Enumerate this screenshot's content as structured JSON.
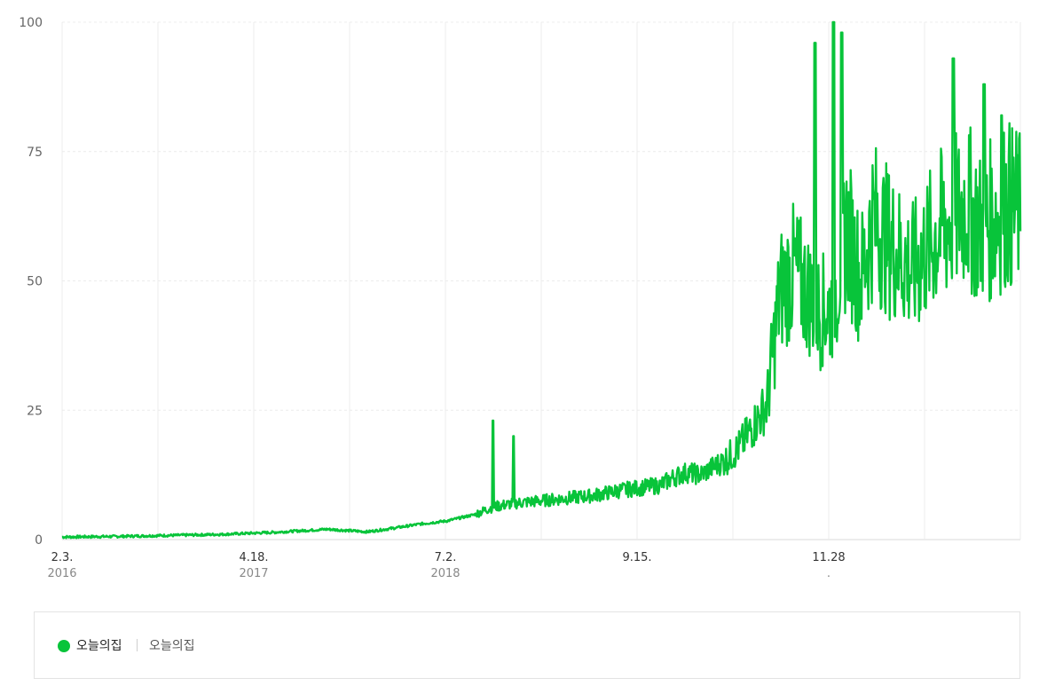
{
  "chart_data": {
    "type": "line",
    "title": "",
    "xlabel": "",
    "ylabel": "",
    "ylim": [
      0,
      100
    ],
    "yticks": [
      "0",
      "25",
      "50",
      "75",
      "100"
    ],
    "xtick_labels": [
      {
        "label": "2.3.",
        "sub": "2016"
      },
      {
        "label": "4.18.",
        "sub": "2017"
      },
      {
        "label": "7.2.",
        "sub": "2018"
      },
      {
        "label": "9.15.",
        "sub": ""
      },
      {
        "label": "11.28",
        "sub": "."
      }
    ],
    "color": "#08c43a",
    "grid": true,
    "series": [
      {
        "name": "오늘의집",
        "x": [
          "2016-02-03",
          "2016-06-01",
          "2016-10-01",
          "2017-02-01",
          "2017-06-01",
          "2017-10-01",
          "2018-01-01",
          "2018-03-01",
          "2018-05-01",
          "2018-07-01",
          "2018-09-01",
          "2018-10-15",
          "2018-12-01",
          "2019-02-01",
          "2019-04-01",
          "2019-06-01",
          "2019-08-01",
          "2019-09-15",
          "2019-11-01",
          "2019-12-01",
          "2020-01-01",
          "2020-02-01",
          "2020-03-01",
          "2020-04-01",
          "2020-05-01",
          "2020-06-01",
          "2020-07-01",
          "2020-08-01",
          "2020-09-01",
          "2020-10-01",
          "2020-11-01",
          "2020-11-28",
          "2021-01-01",
          "2021-02-01",
          "2021-03-01",
          "2021-04-01",
          "2021-05-01",
          "2021-06-01",
          "2021-07-01",
          "2021-08-01",
          "2021-09-01",
          "2021-10-01",
          "2021-11-01",
          "2021-12-01",
          "2022-01-01",
          "2022-02-01"
        ],
        "values": [
          0.5,
          0.6,
          0.8,
          1.0,
          1.4,
          2.0,
          1.5,
          2.2,
          3.0,
          3.6,
          4.8,
          6.3,
          7.0,
          7.5,
          8.0,
          8.5,
          9.5,
          10.0,
          10.5,
          12.0,
          13.0,
          12.5,
          14.0,
          15.5,
          18.0,
          22.0,
          26.0,
          48.0,
          52.0,
          48.0,
          44.0,
          45.0,
          60.0,
          50.0,
          62.0,
          58.0,
          55.0,
          52.0,
          56.0,
          60.0,
          62.0,
          65.0,
          60.0,
          62.0,
          65.0,
          63.0
        ],
        "peaks": [
          {
            "x": "2018-10-15",
            "value": 23
          },
          {
            "x": "2018-12-01",
            "value": 20
          },
          {
            "x": "2020-10-20",
            "value": 96
          },
          {
            "x": "2020-12-01",
            "value": 100
          },
          {
            "x": "2020-12-20",
            "value": 98
          },
          {
            "x": "2021-09-01",
            "value": 93
          },
          {
            "x": "2021-11-10",
            "value": 88
          },
          {
            "x": "2021-12-20",
            "value": 82
          }
        ]
      }
    ]
  },
  "legend": {
    "name": "오늘의집",
    "sub": "오늘의집",
    "dot_color": "#08c43a"
  }
}
